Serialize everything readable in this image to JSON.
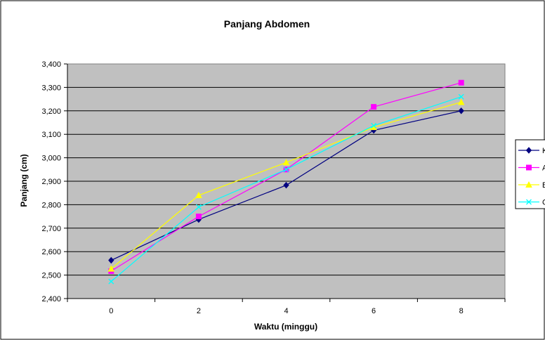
{
  "chart_data": {
    "type": "line",
    "title": "Panjang Abdomen",
    "xlabel": "Waktu (minggu)",
    "ylabel": "Panjang (cm)",
    "categories": [
      "0",
      "2",
      "4",
      "6",
      "8"
    ],
    "ylim": [
      2.4,
      3.4
    ],
    "yticks": [
      "2,400",
      "2,500",
      "2,600",
      "2,700",
      "2,800",
      "2,900",
      "3,000",
      "3,100",
      "3,200",
      "3,300",
      "3,400"
    ],
    "grid": true,
    "legend_position": "right",
    "series": [
      {
        "name": "K",
        "color": "#000080",
        "marker": "diamond",
        "values": [
          2.563,
          2.737,
          2.883,
          3.117,
          3.2
        ]
      },
      {
        "name": "A",
        "color": "#ff00ff",
        "marker": "square",
        "values": [
          2.517,
          2.75,
          2.95,
          3.217,
          3.32
        ]
      },
      {
        "name": "B",
        "color": "#ffff00",
        "marker": "triangle",
        "values": [
          2.527,
          2.84,
          2.98,
          3.13,
          3.237
        ]
      },
      {
        "name": "C",
        "color": "#00ffff",
        "marker": "x",
        "values": [
          2.473,
          2.79,
          2.95,
          3.137,
          3.26
        ]
      }
    ],
    "plot_background": "#c0c0c0"
  }
}
